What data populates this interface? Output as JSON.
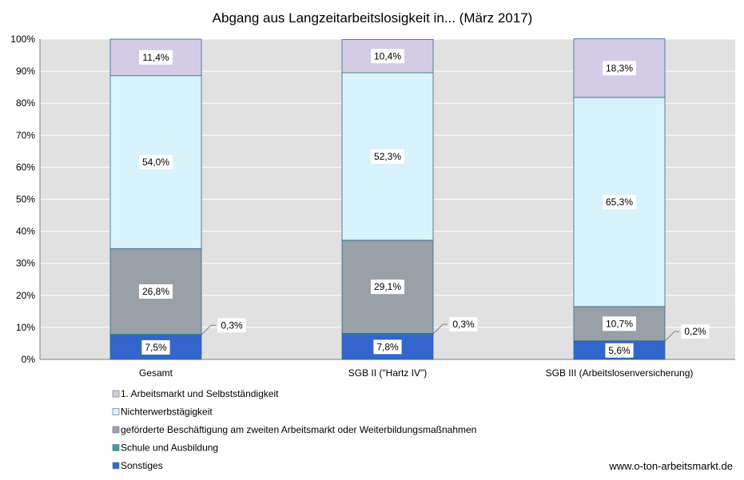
{
  "chart_data": {
    "type": "bar",
    "stacked": true,
    "title": "Abgang aus Langzeitarbeitslosigkeit in... (März 2017)",
    "categories": [
      "Gesamt",
      "SGB II (\"Hartz IV\")",
      "SGB III (Arbeitslosenversicherung)"
    ],
    "yticks": [
      "0%",
      "10%",
      "20%",
      "30%",
      "40%",
      "50%",
      "60%",
      "70%",
      "80%",
      "90%",
      "100%"
    ],
    "ylim": [
      0,
      100
    ],
    "grid": true,
    "legend_position": "bottom-left",
    "series": [
      {
        "name": "Sonstiges",
        "color": "#3366cc",
        "values": [
          7.5,
          7.8,
          5.6
        ],
        "labels": [
          "7,5%",
          "7,8%",
          "5,6%"
        ]
      },
      {
        "name": "Schule und Ausbildung",
        "color": "#2aa59a",
        "values": [
          0.3,
          0.3,
          0.2
        ],
        "labels": [
          "0,3%",
          "0,3%",
          "0,2%"
        ]
      },
      {
        "name": "geförderte Beschäftigung am zweiten Arbeitsmarkt oder Weiterbildungsmaßnahmen",
        "color": "#9aa0a8",
        "values": [
          26.8,
          29.1,
          10.7
        ],
        "labels": [
          "26,8%",
          "29,1%",
          "10,7%"
        ]
      },
      {
        "name": "Nichterwerbstägigkeit",
        "color": "#d8f3fb",
        "values": [
          54.0,
          52.3,
          65.3
        ],
        "labels": [
          "54,0%",
          "52,3%",
          "65,3%"
        ]
      },
      {
        "name": "1. Arbeitsmarkt und Selbstständigkeit",
        "color": "#d4cce6",
        "values": [
          11.4,
          10.4,
          18.3
        ],
        "labels": [
          "11,4%",
          "10,4%",
          "18,3%"
        ]
      }
    ]
  },
  "footer": {
    "source": "www.o-ton-arbeitsmarkt.de"
  }
}
